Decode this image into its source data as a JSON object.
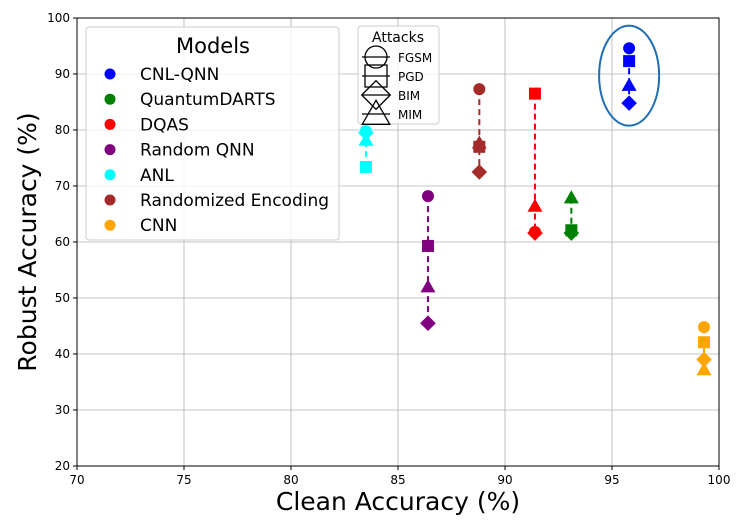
{
  "chart_data": {
    "type": "scatter",
    "title": "",
    "xlabel": "Clean Accuracy (%)",
    "ylabel": "Robust Accuracy (%)",
    "xlim": [
      70,
      100
    ],
    "ylim": [
      20,
      100
    ],
    "xticks": [
      "70",
      "75",
      "80",
      "85",
      "90",
      "95",
      "100"
    ],
    "yticks": [
      "20",
      "30",
      "40",
      "50",
      "60",
      "70",
      "80",
      "90",
      "100"
    ],
    "grid": true,
    "models_legend_title": "Models",
    "attacks_legend_title": "Attacks",
    "attacks": [
      {
        "name": "FGSM",
        "marker": "circle"
      },
      {
        "name": "PGD",
        "marker": "square"
      },
      {
        "name": "BIM",
        "marker": "diamond"
      },
      {
        "name": "MIM",
        "marker": "triangle"
      }
    ],
    "series": [
      {
        "name": "CNL-QNN",
        "color": "#0000ff",
        "clean": 95.8,
        "fgsm": 94.6,
        "pgd": 92.3,
        "bim": 84.8,
        "mim": 88.0,
        "highlight": true
      },
      {
        "name": "QuantumDARTS",
        "color": "#008000",
        "clean": 93.1,
        "fgsm": 61.8,
        "pgd": 62.1,
        "bim": 61.6,
        "mim": 67.9
      },
      {
        "name": "DQAS",
        "color": "#ff0000",
        "clean": 91.4,
        "fgsm": 61.8,
        "pgd": 86.5,
        "bim": 61.6,
        "mim": 66.4
      },
      {
        "name": "Random QNN",
        "color": "#800080",
        "clean": 86.4,
        "fgsm": 68.2,
        "pgd": 59.3,
        "bim": 45.5,
        "mim": 52.0
      },
      {
        "name": "ANL",
        "color": "#00ffff",
        "clean": 83.5,
        "fgsm": 79.8,
        "pgd": 73.4,
        "bim": 79.5,
        "mim": 78.2
      },
      {
        "name": "Randomized Encoding",
        "color": "#a52a2a",
        "clean": 88.8,
        "fgsm": 87.3,
        "pgd": 77.0,
        "bim": 72.5,
        "mim": 77.7
      },
      {
        "name": "CNN",
        "color": "#ffa500",
        "clean": 99.3,
        "fgsm": 44.8,
        "pgd": 42.1,
        "bim": 39.0,
        "mim": 37.2
      }
    ],
    "highlight_color": "#1f6fb5"
  }
}
